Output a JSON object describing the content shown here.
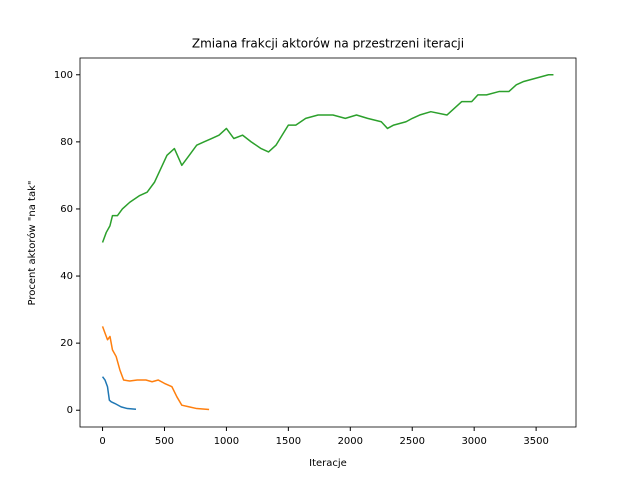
{
  "chart_data": {
    "type": "line",
    "title": "Zmiana frakcji aktorów na przestrzeni iteracji",
    "x_label": "Iteracje",
    "y_label": "Procent aktorów \"na tak\"",
    "xlim": [
      -182,
      3822
    ],
    "ylim": [
      -5,
      105
    ],
    "xticks": [
      0,
      500,
      1000,
      1500,
      2000,
      2500,
      3000,
      3500
    ],
    "yticks": [
      0,
      20,
      40,
      60,
      80,
      100
    ],
    "grid": false,
    "series": [
      {
        "color": "#1f77b4",
        "x": [
          0,
          20,
          40,
          55,
          70,
          100,
          150,
          200,
          270
        ],
        "values": [
          10,
          9,
          7,
          3,
          2.5,
          2,
          1,
          0.5,
          0.3
        ]
      },
      {
        "color": "#ff7f0e",
        "x": [
          0,
          20,
          40,
          60,
          80,
          110,
          140,
          170,
          220,
          280,
          350,
          400,
          450,
          500,
          560,
          600,
          640,
          700,
          760,
          860
        ],
        "values": [
          25,
          23,
          21,
          22,
          18,
          16,
          12,
          9,
          8.7,
          9,
          9,
          8.5,
          9,
          8,
          7,
          4,
          1.5,
          1,
          0.5,
          0.2
        ]
      },
      {
        "color": "#2ca02c",
        "x": [
          0,
          30,
          60,
          80,
          120,
          160,
          220,
          300,
          360,
          420,
          470,
          520,
          580,
          640,
          700,
          760,
          820,
          880,
          940,
          1000,
          1060,
          1130,
          1200,
          1280,
          1340,
          1400,
          1450,
          1500,
          1560,
          1640,
          1740,
          1860,
          1960,
          2050,
          2140,
          2250,
          2300,
          2350,
          2450,
          2500,
          2560,
          2650,
          2780,
          2900,
          2980,
          3030,
          3100,
          3200,
          3280,
          3340,
          3400,
          3500,
          3600,
          3640
        ],
        "values": [
          50,
          53,
          55,
          58,
          58,
          60,
          62,
          64,
          65,
          68,
          72,
          76,
          78,
          73,
          76,
          79,
          80,
          81,
          82,
          84,
          81,
          82,
          80,
          78,
          77,
          79,
          82,
          85,
          85,
          87,
          88,
          88,
          87,
          88,
          87,
          86,
          84,
          85,
          86,
          87,
          88,
          89,
          88,
          92,
          92,
          94,
          94,
          95,
          95,
          97,
          98,
          99,
          100,
          100
        ]
      }
    ]
  }
}
